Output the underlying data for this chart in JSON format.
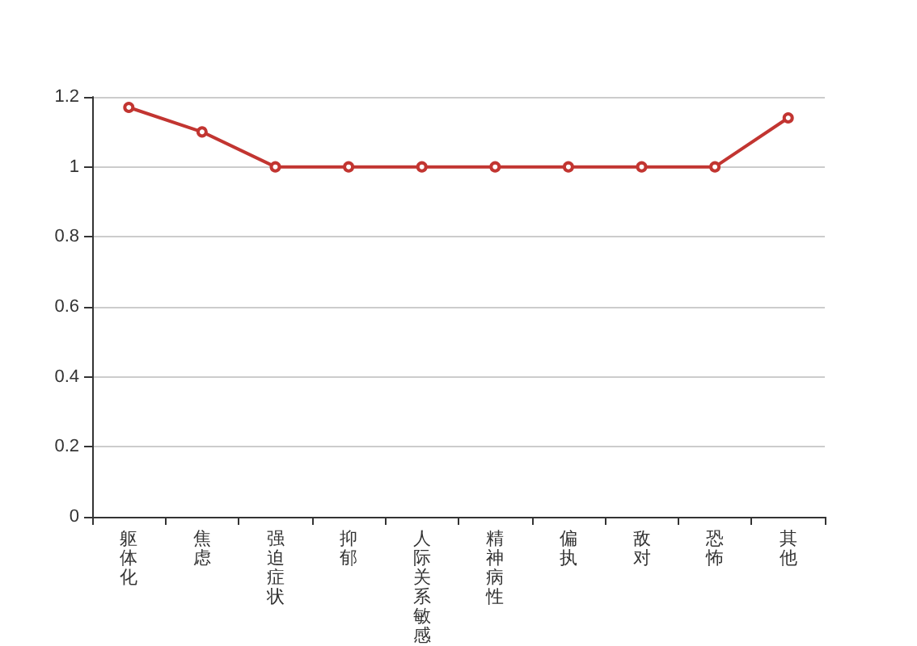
{
  "chart_data": {
    "type": "line",
    "categories": [
      "躯体化",
      "焦虑",
      "强迫症状",
      "抑郁",
      "人际关系敏感",
      "精神病性",
      "偏执",
      "敌对",
      "恐怖",
      "其他"
    ],
    "series": [
      {
        "color": "#c23531",
        "values": [
          1.17,
          1.1,
          1,
          1,
          1,
          1,
          1,
          1,
          1,
          1.14
        ]
      }
    ],
    "ylim": [
      0,
      1.2
    ],
    "yticks": [
      0,
      0.2,
      0.4,
      0.6,
      0.8,
      1,
      1.2
    ],
    "grid": "y",
    "marker": "circle",
    "line_style": "solid"
  }
}
